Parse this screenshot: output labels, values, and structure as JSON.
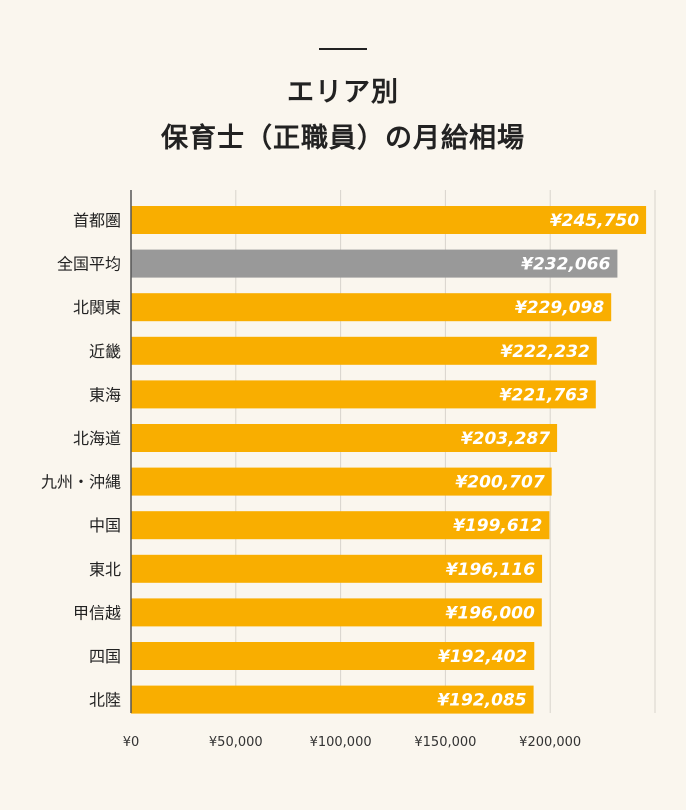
{
  "title_line1": "エリア別",
  "title_line2": "保育士（正職員）の月給相場",
  "chart_data": {
    "type": "bar",
    "orientation": "horizontal",
    "title": "エリア別 保育士（正職員）の月給相場",
    "categories": [
      "首都圏",
      "全国平均",
      "北関東",
      "近畿",
      "東海",
      "北海道",
      "九州・沖縄",
      "中国",
      "東北",
      "甲信越",
      "四国",
      "北陸"
    ],
    "values": [
      245750,
      232066,
      229098,
      222232,
      221763,
      203287,
      200707,
      199612,
      196116,
      196000,
      192402,
      192085
    ],
    "value_labels": [
      "¥245,750",
      "¥232,066",
      "¥229,098",
      "¥222,232",
      "¥221,763",
      "¥203,287",
      "¥200,707",
      "¥199,612",
      "¥196,116",
      "¥196,000",
      "¥192,402",
      "¥192,085"
    ],
    "x_ticks": [
      0,
      50000,
      100000,
      150000,
      200000
    ],
    "x_tick_labels": [
      "¥0",
      "¥50,000",
      "¥100,000",
      "¥150,000",
      "¥200,000"
    ],
    "xlim": [
      0,
      250000
    ],
    "grid": true,
    "colors": {
      "bar": "#f9ae00",
      "highlight": "#999999",
      "highlight_category": "全国平均"
    }
  }
}
